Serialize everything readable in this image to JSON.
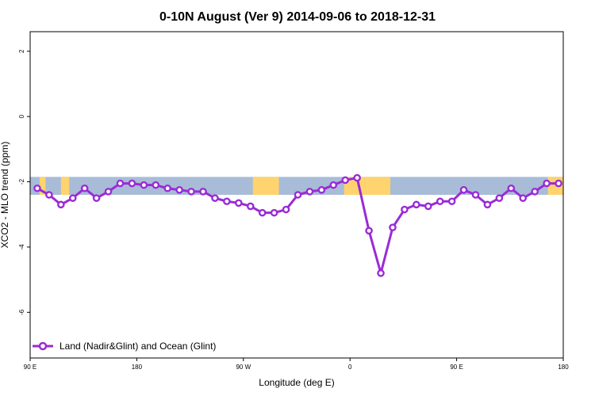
{
  "chart_data": {
    "type": "line",
    "title": "0-10N August (Ver 9)   2014-09-06 to 2018-12-31",
    "xlabel": "Longitude (deg E)",
    "ylabel": "XCO2 - MLO trend (ppm)",
    "x_ticks": [
      {
        "value": 90,
        "label": "90 E"
      },
      {
        "value": 180,
        "label": "180"
      },
      {
        "value": 270,
        "label": "90 W"
      },
      {
        "value": 360,
        "label": "0"
      },
      {
        "value": 450,
        "label": "90 E"
      },
      {
        "value": 540,
        "label": "180"
      }
    ],
    "y_ticks": [
      {
        "value": 2,
        "label": "2"
      },
      {
        "value": 0,
        "label": "0"
      },
      {
        "value": -2,
        "label": "-2"
      },
      {
        "value": -4,
        "label": "-4"
      },
      {
        "value": -6,
        "label": "-6"
      }
    ],
    "xlim": [
      90,
      540
    ],
    "ylim": [
      -7.4,
      2.6
    ],
    "band": {
      "ymin": -2.4,
      "ymax": -1.85,
      "ocean_color": "#a8bcd8",
      "land_color": "#ffd36e"
    },
    "land_segments": [
      [
        98,
        103
      ],
      [
        116,
        123
      ],
      [
        278,
        300
      ],
      [
        355,
        394
      ],
      [
        527,
        540
      ]
    ],
    "series": [
      {
        "name": "Land (Nadir&Glint) and Ocean (Glint)",
        "color": "#9a2bd6",
        "x": [
          96,
          106,
          116,
          126,
          136,
          146,
          156,
          166,
          176,
          186,
          196,
          206,
          216,
          226,
          236,
          246,
          256,
          266,
          276,
          286,
          296,
          306,
          316,
          326,
          336,
          346,
          356,
          366,
          376,
          386,
          396,
          406,
          416,
          426,
          436,
          446,
          456,
          466,
          476,
          486,
          496,
          506,
          516,
          526,
          536
        ],
        "values": [
          -2.2,
          -2.4,
          -2.7,
          -2.5,
          -2.2,
          -2.5,
          -2.3,
          -2.05,
          -2.05,
          -2.1,
          -2.1,
          -2.2,
          -2.25,
          -2.3,
          -2.3,
          -2.5,
          -2.6,
          -2.65,
          -2.75,
          -2.95,
          -2.95,
          -2.85,
          -2.4,
          -2.3,
          -2.25,
          -2.1,
          -1.95,
          -1.88,
          -3.5,
          -4.8,
          -3.4,
          -2.85,
          -2.7,
          -2.75,
          -2.6,
          -2.6,
          -2.25,
          -2.4,
          -2.7,
          -2.5,
          -2.2,
          -2.5,
          -2.3,
          -2.05,
          -2.05
        ]
      }
    ],
    "legend": {
      "position": "bottom-left"
    },
    "grid": false
  }
}
